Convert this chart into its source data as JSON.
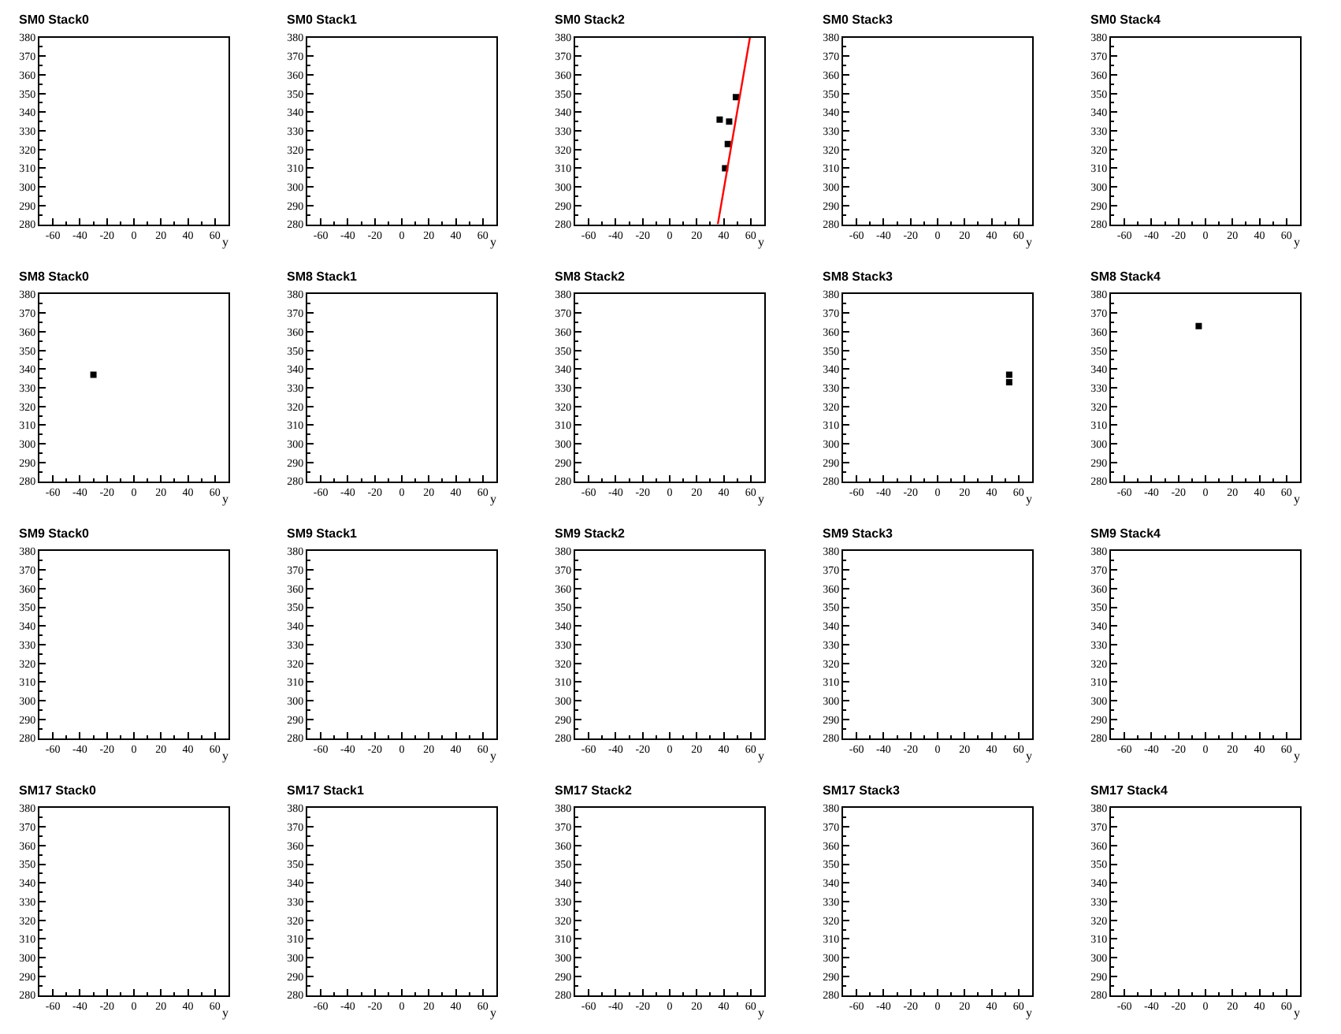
{
  "chart_data": [
    {
      "type": "scatter",
      "title": "SM0 Stack0",
      "xlabel": "y",
      "xlim": [
        -70,
        70
      ],
      "ylim": [
        280,
        380
      ],
      "xticks": [
        -60,
        -40,
        -20,
        0,
        20,
        40,
        60
      ],
      "yticks": [
        280,
        290,
        300,
        310,
        320,
        330,
        340,
        350,
        360,
        370,
        380
      ]
    },
    {
      "type": "scatter",
      "title": "SM0 Stack1",
      "xlabel": "y",
      "xlim": [
        -70,
        70
      ],
      "ylim": [
        280,
        380
      ],
      "xticks": [
        -60,
        -40,
        -20,
        0,
        20,
        40,
        60
      ],
      "yticks": [
        280,
        290,
        300,
        310,
        320,
        330,
        340,
        350,
        360,
        370,
        380
      ]
    },
    {
      "type": "scatter",
      "title": "SM0 Stack2",
      "xlabel": "y",
      "xlim": [
        -70,
        70
      ],
      "ylim": [
        280,
        380
      ],
      "xticks": [
        -60,
        -40,
        -20,
        0,
        20,
        40,
        60
      ],
      "yticks": [
        280,
        290,
        300,
        310,
        320,
        330,
        340,
        350,
        360,
        370,
        380
      ],
      "marker": "square",
      "series": [
        {
          "color": "#000000",
          "x": [
            37,
            44,
            43,
            41,
            49
          ],
          "values": [
            336,
            335,
            323,
            310,
            348
          ]
        },
        {
          "type": "line",
          "marker": "none",
          "color": "#ff0000",
          "line_style": "solid",
          "x": [
            35.6,
            59.4
          ],
          "values": [
            280,
            380
          ]
        }
      ]
    },
    {
      "type": "scatter",
      "title": "SM0 Stack3",
      "xlabel": "y",
      "xlim": [
        -70,
        70
      ],
      "ylim": [
        280,
        380
      ],
      "xticks": [
        -60,
        -40,
        -20,
        0,
        20,
        40,
        60
      ],
      "yticks": [
        280,
        290,
        300,
        310,
        320,
        330,
        340,
        350,
        360,
        370,
        380
      ]
    },
    {
      "type": "scatter",
      "title": "SM0 Stack4",
      "xlabel": "y",
      "xlim": [
        -70,
        70
      ],
      "ylim": [
        280,
        380
      ],
      "xticks": [
        -60,
        -40,
        -20,
        0,
        20,
        40,
        60
      ],
      "yticks": [
        280,
        290,
        300,
        310,
        320,
        330,
        340,
        350,
        360,
        370,
        380
      ]
    },
    {
      "type": "scatter",
      "title": "SM8 Stack0",
      "xlabel": "y",
      "xlim": [
        -70,
        70
      ],
      "ylim": [
        280,
        380
      ],
      "xticks": [
        -60,
        -40,
        -20,
        0,
        20,
        40,
        60
      ],
      "yticks": [
        280,
        290,
        300,
        310,
        320,
        330,
        340,
        350,
        360,
        370,
        380
      ],
      "marker": "square",
      "series": [
        {
          "color": "#000000",
          "x": [
            -30
          ],
          "values": [
            337
          ]
        }
      ]
    },
    {
      "type": "scatter",
      "title": "SM8 Stack1",
      "xlabel": "y",
      "xlim": [
        -70,
        70
      ],
      "ylim": [
        280,
        380
      ],
      "xticks": [
        -60,
        -40,
        -20,
        0,
        20,
        40,
        60
      ],
      "yticks": [
        280,
        290,
        300,
        310,
        320,
        330,
        340,
        350,
        360,
        370,
        380
      ]
    },
    {
      "type": "scatter",
      "title": "SM8 Stack2",
      "xlabel": "y",
      "xlim": [
        -70,
        70
      ],
      "ylim": [
        280,
        380
      ],
      "xticks": [
        -60,
        -40,
        -20,
        0,
        20,
        40,
        60
      ],
      "yticks": [
        280,
        290,
        300,
        310,
        320,
        330,
        340,
        350,
        360,
        370,
        380
      ]
    },
    {
      "type": "scatter",
      "title": "SM8 Stack3",
      "xlabel": "y",
      "xlim": [
        -70,
        70
      ],
      "ylim": [
        280,
        380
      ],
      "xticks": [
        -60,
        -40,
        -20,
        0,
        20,
        40,
        60
      ],
      "yticks": [
        280,
        290,
        300,
        310,
        320,
        330,
        340,
        350,
        360,
        370,
        380
      ],
      "marker": "square",
      "series": [
        {
          "color": "#000000",
          "x": [
            53,
            53
          ],
          "values": [
            337,
            333
          ]
        }
      ]
    },
    {
      "type": "scatter",
      "title": "SM8 Stack4",
      "xlabel": "y",
      "xlim": [
        -70,
        70
      ],
      "ylim": [
        280,
        380
      ],
      "xticks": [
        -60,
        -40,
        -20,
        0,
        20,
        40,
        60
      ],
      "yticks": [
        280,
        290,
        300,
        310,
        320,
        330,
        340,
        350,
        360,
        370,
        380
      ],
      "marker": "square",
      "series": [
        {
          "color": "#000000",
          "x": [
            -5
          ],
          "values": [
            363
          ]
        }
      ]
    },
    {
      "type": "scatter",
      "title": "SM9 Stack0",
      "xlabel": "y",
      "xlim": [
        -70,
        70
      ],
      "ylim": [
        280,
        380
      ],
      "xticks": [
        -60,
        -40,
        -20,
        0,
        20,
        40,
        60
      ],
      "yticks": [
        280,
        290,
        300,
        310,
        320,
        330,
        340,
        350,
        360,
        370,
        380
      ]
    },
    {
      "type": "scatter",
      "title": "SM9 Stack1",
      "xlabel": "y",
      "xlim": [
        -70,
        70
      ],
      "ylim": [
        280,
        380
      ],
      "xticks": [
        -60,
        -40,
        -20,
        0,
        20,
        40,
        60
      ],
      "yticks": [
        280,
        290,
        300,
        310,
        320,
        330,
        340,
        350,
        360,
        370,
        380
      ]
    },
    {
      "type": "scatter",
      "title": "SM9 Stack2",
      "xlabel": "y",
      "xlim": [
        -70,
        70
      ],
      "ylim": [
        280,
        380
      ],
      "xticks": [
        -60,
        -40,
        -20,
        0,
        20,
        40,
        60
      ],
      "yticks": [
        280,
        290,
        300,
        310,
        320,
        330,
        340,
        350,
        360,
        370,
        380
      ]
    },
    {
      "type": "scatter",
      "title": "SM9 Stack3",
      "xlabel": "y",
      "xlim": [
        -70,
        70
      ],
      "ylim": [
        280,
        380
      ],
      "xticks": [
        -60,
        -40,
        -20,
        0,
        20,
        40,
        60
      ],
      "yticks": [
        280,
        290,
        300,
        310,
        320,
        330,
        340,
        350,
        360,
        370,
        380
      ]
    },
    {
      "type": "scatter",
      "title": "SM9 Stack4",
      "xlabel": "y",
      "xlim": [
        -70,
        70
      ],
      "ylim": [
        280,
        380
      ],
      "xticks": [
        -60,
        -40,
        -20,
        0,
        20,
        40,
        60
      ],
      "yticks": [
        280,
        290,
        300,
        310,
        320,
        330,
        340,
        350,
        360,
        370,
        380
      ]
    },
    {
      "type": "scatter",
      "title": "SM17 Stack0",
      "xlabel": "y",
      "xlim": [
        -70,
        70
      ],
      "ylim": [
        280,
        380
      ],
      "xticks": [
        -60,
        -40,
        -20,
        0,
        20,
        40,
        60
      ],
      "yticks": [
        280,
        290,
        300,
        310,
        320,
        330,
        340,
        350,
        360,
        370,
        380
      ]
    },
    {
      "type": "scatter",
      "title": "SM17 Stack1",
      "xlabel": "y",
      "xlim": [
        -70,
        70
      ],
      "ylim": [
        280,
        380
      ],
      "xticks": [
        -60,
        -40,
        -20,
        0,
        20,
        40,
        60
      ],
      "yticks": [
        280,
        290,
        300,
        310,
        320,
        330,
        340,
        350,
        360,
        370,
        380
      ]
    },
    {
      "type": "scatter",
      "title": "SM17 Stack2",
      "xlabel": "y",
      "xlim": [
        -70,
        70
      ],
      "ylim": [
        280,
        380
      ],
      "xticks": [
        -60,
        -40,
        -20,
        0,
        20,
        40,
        60
      ],
      "yticks": [
        280,
        290,
        300,
        310,
        320,
        330,
        340,
        350,
        360,
        370,
        380
      ]
    },
    {
      "type": "scatter",
      "title": "SM17 Stack3",
      "xlabel": "y",
      "xlim": [
        -70,
        70
      ],
      "ylim": [
        280,
        380
      ],
      "xticks": [
        -60,
        -40,
        -20,
        0,
        20,
        40,
        60
      ],
      "yticks": [
        280,
        290,
        300,
        310,
        320,
        330,
        340,
        350,
        360,
        370,
        380
      ]
    },
    {
      "type": "scatter",
      "title": "SM17 Stack4",
      "xlabel": "y",
      "xlim": [
        -70,
        70
      ],
      "ylim": [
        280,
        380
      ],
      "xticks": [
        -60,
        -40,
        -20,
        0,
        20,
        40,
        60
      ],
      "yticks": [
        280,
        290,
        300,
        310,
        320,
        330,
        340,
        350,
        360,
        370,
        380
      ]
    }
  ]
}
